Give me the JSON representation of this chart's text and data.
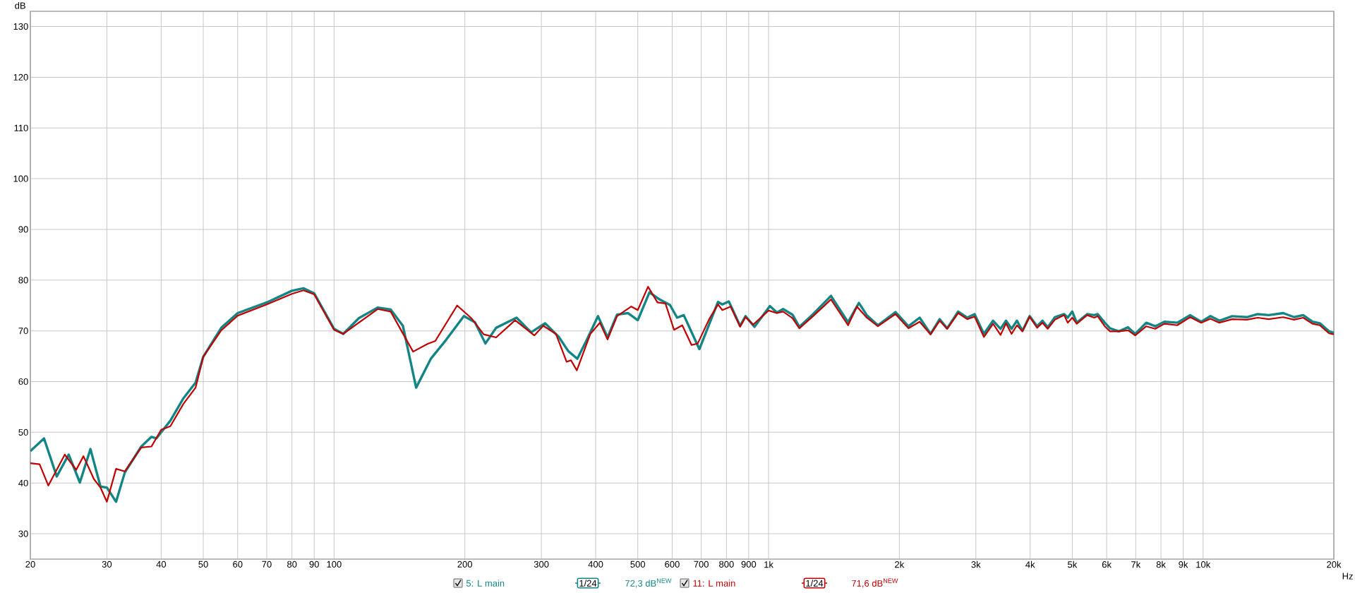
{
  "chart_data": {
    "type": "line",
    "ylabel": "dB",
    "xlim": [
      20,
      20000
    ],
    "ylim": [
      25,
      133
    ],
    "log": "x",
    "grid": true,
    "legend": "bottom",
    "xticks": [
      20,
      30,
      40,
      50,
      60,
      70,
      80,
      90,
      100,
      200,
      300,
      400,
      500,
      600,
      700,
      800,
      900,
      {
        "value": 1000,
        "label": "1k"
      },
      {
        "value": 2000,
        "label": "2k"
      },
      {
        "value": 3000,
        "label": "3k"
      },
      {
        "value": 4000,
        "label": "4k"
      },
      {
        "value": 5000,
        "label": "5k"
      },
      {
        "value": 6000,
        "label": "6k"
      },
      {
        "value": 7000,
        "label": "7k"
      },
      {
        "value": 8000,
        "label": "8k"
      },
      {
        "value": 9000,
        "label": "9k"
      },
      {
        "value": 10000,
        "label": "10k"
      },
      {
        "value": 20000,
        "label": "20k"
      }
    ],
    "xlabel": "Hz",
    "yticks": [
      30,
      40,
      50,
      60,
      70,
      80,
      90,
      100,
      110,
      120,
      130
    ],
    "annotations": [
      "1/24",
      "72,3 dB$^{NEW}$",
      "1/24",
      "71,6 dB$^{NEW}$"
    ],
    "series": [
      {
        "name": "5: L main",
        "color": "#138585",
        "x": [
          20,
          21.5,
          23,
          24.5,
          26,
          27.5,
          29,
          30,
          31.5,
          33,
          36,
          38,
          39,
          42,
          45,
          48,
          50,
          55,
          60,
          70,
          80,
          85,
          90,
          100,
          105,
          114,
          126,
          135,
          144,
          154.5,
          167,
          181,
          199,
          211,
          223,
          236,
          263,
          284,
          306,
          329,
          346,
          363,
          383,
          405,
          426,
          448,
          475,
          500,
          532,
          561,
          593,
          616,
          638,
          693,
          765,
          783,
          810,
          860,
          885,
          928,
          1007,
          1045,
          1080,
          1135,
          1177,
          1266,
          1392,
          1524,
          1614,
          1683,
          1785,
          1960,
          2099,
          2227,
          2360,
          2476,
          2576,
          2731,
          2866,
          2980,
          3130,
          3287,
          3419,
          3520,
          3625,
          3730,
          3840,
          3990,
          4150,
          4270,
          4390,
          4560,
          4790,
          4880,
          5000,
          5120,
          5410,
          5620,
          5720,
          5940,
          6110,
          6400,
          6720,
          6980,
          7400,
          7760,
          8150,
          8720,
          9340,
          9900,
          10400,
          10900,
          11670,
          12610,
          13360,
          14160,
          15290,
          16200,
          17000,
          17860,
          18560,
          19500,
          20000
        ],
        "values": [
          46.3,
          48.8,
          41.3,
          45.6,
          40.1,
          46.7,
          39.3,
          39.1,
          36.3,
          42.1,
          47.2,
          49.1,
          48.8,
          52.3,
          56.7,
          59.8,
          64.9,
          70.6,
          73.5,
          75.6,
          77.9,
          78.4,
          77.4,
          70.4,
          69.4,
          72.5,
          74.6,
          74.2,
          71.0,
          58.8,
          64.5,
          68.2,
          72.9,
          71.7,
          67.5,
          70.6,
          72.6,
          69.7,
          71.5,
          68.8,
          66.0,
          64.5,
          68.5,
          72.9,
          68.7,
          73.2,
          73.5,
          72.1,
          77.6,
          76.2,
          75.1,
          72.6,
          73.1,
          66.4,
          75.7,
          75.2,
          75.8,
          71.0,
          72.9,
          70.8,
          74.9,
          73.6,
          74.3,
          73.2,
          70.8,
          73.3,
          76.9,
          71.7,
          75.5,
          73.1,
          71.1,
          73.7,
          70.9,
          72.6,
          69.4,
          72.3,
          70.5,
          73.8,
          72.6,
          73.3,
          69.4,
          72.0,
          70.4,
          72.0,
          70.4,
          72.0,
          70.0,
          72.9,
          70.9,
          72.0,
          70.7,
          72.7,
          73.3,
          72.6,
          73.8,
          71.6,
          73.3,
          73.1,
          73.3,
          71.6,
          70.5,
          69.9,
          70.7,
          69.4,
          71.6,
          70.9,
          71.8,
          71.6,
          73.1,
          71.8,
          72.9,
          72.0,
          72.9,
          72.7,
          73.3,
          73.1,
          73.5,
          72.7,
          73.1,
          71.8,
          71.5,
          69.9,
          69.6
        ]
      },
      {
        "name": "11: L main",
        "color": "#c00000",
        "x": [
          20,
          21,
          22,
          24,
          25.5,
          26.5,
          28,
          29,
          30,
          31.5,
          33,
          36,
          38,
          40,
          42,
          45,
          48,
          50,
          55,
          60,
          70,
          80,
          85,
          90,
          100,
          105,
          126,
          135,
          152,
          164,
          171,
          192,
          207,
          221,
          236,
          261,
          289,
          303,
          324,
          343,
          351,
          362,
          389,
          409,
          426,
          448,
          483,
          500,
          528,
          555,
          579,
          606,
          633,
          665,
          687,
          730,
          765,
          783,
          818,
          860,
          885,
          921,
          1000,
          1045,
          1080,
          1135,
          1177,
          1266,
          1392,
          1524,
          1597,
          1683,
          1785,
          1960,
          2099,
          2227,
          2360,
          2476,
          2576,
          2731,
          2866,
          2980,
          3130,
          3287,
          3419,
          3520,
          3625,
          3730,
          3840,
          3990,
          4150,
          4270,
          4390,
          4560,
          4790,
          4880,
          5000,
          5120,
          5410,
          5620,
          5720,
          5940,
          6110,
          6400,
          6720,
          6980,
          7400,
          7760,
          8150,
          8720,
          9340,
          9900,
          10400,
          10900,
          11670,
          12610,
          13360,
          14160,
          15290,
          16200,
          17000,
          17860,
          18560,
          19500,
          20000
        ],
        "values": [
          43.9,
          43.7,
          39.5,
          45.6,
          42.6,
          45.3,
          40.8,
          39.1,
          36.3,
          42.8,
          42.3,
          47.0,
          47.2,
          50.5,
          51.2,
          55.6,
          58.8,
          64.9,
          70.1,
          73.0,
          75.2,
          77.3,
          78.0,
          77.2,
          70.2,
          69.4,
          74.3,
          73.8,
          65.9,
          67.4,
          68.0,
          75.0,
          72.5,
          69.3,
          68.7,
          72.1,
          69.1,
          71.0,
          69.4,
          63.9,
          64.2,
          62.2,
          69.4,
          71.6,
          68.3,
          72.9,
          74.8,
          74.1,
          78.7,
          75.6,
          75.4,
          70.2,
          71.1,
          67.2,
          67.5,
          72.3,
          75.2,
          74.1,
          74.8,
          70.8,
          72.7,
          71.2,
          74.0,
          73.5,
          73.8,
          72.5,
          70.5,
          72.9,
          76.2,
          71.1,
          74.8,
          72.6,
          70.9,
          73.3,
          70.5,
          71.8,
          69.3,
          72.0,
          70.4,
          73.5,
          72.3,
          72.8,
          68.8,
          71.4,
          69.2,
          71.5,
          69.4,
          71.1,
          69.9,
          72.8,
          70.6,
          71.6,
          70.4,
          72.2,
          73.1,
          71.6,
          72.6,
          71.4,
          73.1,
          72.6,
          72.9,
          70.9,
          69.9,
          69.9,
          70.1,
          69.1,
          70.9,
          70.4,
          71.4,
          71.1,
          72.7,
          71.6,
          72.4,
          71.6,
          72.3,
          72.2,
          72.6,
          72.3,
          72.7,
          72.2,
          72.6,
          71.4,
          71.1,
          69.5,
          69.3
        ]
      }
    ]
  }
}
